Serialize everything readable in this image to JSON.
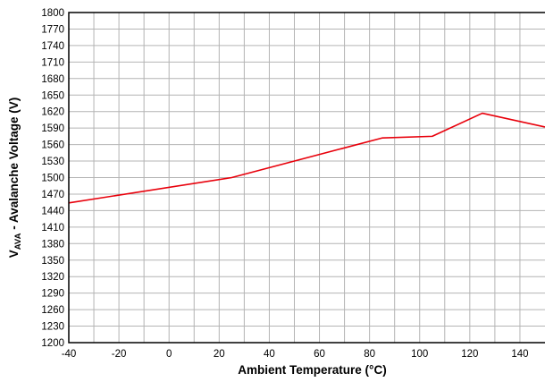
{
  "chart_data": {
    "type": "line",
    "title": "",
    "xlabel": "Ambient Temperature (°C)",
    "ylabel": {
      "main": "V",
      "subscript": "AVA",
      "rest": " - Avalanche Voltage (V)"
    },
    "xlim": [
      -40,
      150
    ],
    "ylim": [
      1200,
      1800
    ],
    "x_ticks": [
      -40,
      -20,
      0,
      20,
      40,
      60,
      80,
      100,
      120,
      140
    ],
    "x_minor_step": 10,
    "y_ticks": [
      1200,
      1230,
      1260,
      1290,
      1320,
      1350,
      1380,
      1410,
      1440,
      1470,
      1500,
      1530,
      1560,
      1590,
      1620,
      1650,
      1680,
      1710,
      1740,
      1770,
      1800
    ],
    "grid": true,
    "legend": "none",
    "series": [
      {
        "color": "#e8000b",
        "x": [
          -40,
          25,
          85,
          105,
          125,
          150
        ],
        "y": [
          1454,
          1500,
          1572,
          1575,
          1617,
          1592
        ]
      }
    ],
    "colors": {
      "grid": "#b4b4b4",
      "axis": "#000000",
      "background": "#ffffff"
    }
  }
}
